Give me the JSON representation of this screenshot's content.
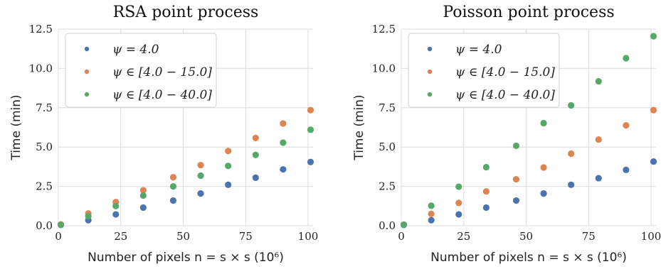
{
  "chart_data": [
    {
      "type": "scatter",
      "title": "RSA point process",
      "xlabel": "Number of pixels n = s × s (10⁶)",
      "ylabel": "Time (min)",
      "xlim": [
        0,
        102
      ],
      "ylim": [
        0,
        12.5
      ],
      "xticks": [
        "0",
        "25",
        "50",
        "75",
        "100"
      ],
      "yticks": [
        "0.0",
        "2.5",
        "5.0",
        "7.5",
        "10.0",
        "12.5"
      ],
      "grid": true,
      "legend_position": "top-left",
      "x": [
        1,
        12,
        23,
        34,
        46,
        57,
        68,
        79,
        90,
        101
      ],
      "series": [
        {
          "name": "ψ = 4.0",
          "color": "#4c72b0",
          "values": [
            0.05,
            0.35,
            0.72,
            1.15,
            1.6,
            2.05,
            2.6,
            3.05,
            3.58,
            4.05
          ]
        },
        {
          "name": "ψ ∈ [4.0 − 15.0]",
          "color": "#dd8452",
          "values": [
            0.08,
            0.78,
            1.5,
            2.25,
            3.08,
            3.85,
            4.75,
            5.58,
            6.5,
            7.35
          ]
        },
        {
          "name": "ψ ∈ [4.0 − 40.0]",
          "color": "#55a868",
          "values": [
            0.06,
            0.6,
            1.25,
            1.92,
            2.5,
            3.18,
            3.8,
            4.5,
            5.28,
            6.1
          ]
        }
      ]
    },
    {
      "type": "scatter",
      "title": "Poisson point process",
      "xlabel": "Number of pixels n = s × s (10⁶)",
      "ylabel": "Time (min)",
      "xlim": [
        0,
        102
      ],
      "ylim": [
        0,
        12.5
      ],
      "xticks": [
        "0",
        "25",
        "50",
        "75",
        "100"
      ],
      "yticks": [
        "0.0",
        "2.5",
        "5.0",
        "7.5",
        "10.0",
        "12.5"
      ],
      "grid": true,
      "legend_position": "top-left",
      "x": [
        1,
        12,
        23,
        34,
        46,
        57,
        68,
        79,
        90,
        101
      ],
      "series": [
        {
          "name": "ψ = 4.0",
          "color": "#4c72b0",
          "values": [
            0.05,
            0.35,
            0.72,
            1.15,
            1.6,
            2.05,
            2.6,
            3.02,
            3.55,
            4.08
          ]
        },
        {
          "name": "ψ ∈ [4.0 − 15.0]",
          "color": "#dd8452",
          "values": [
            0.07,
            0.75,
            1.45,
            2.18,
            2.95,
            3.7,
            4.58,
            5.48,
            6.38,
            7.35
          ]
        },
        {
          "name": "ψ ∈ [4.0 − 40.0]",
          "color": "#55a868",
          "values": [
            0.06,
            1.27,
            2.48,
            3.72,
            5.08,
            6.52,
            7.65,
            9.18,
            10.65,
            12.05
          ]
        }
      ]
    }
  ]
}
